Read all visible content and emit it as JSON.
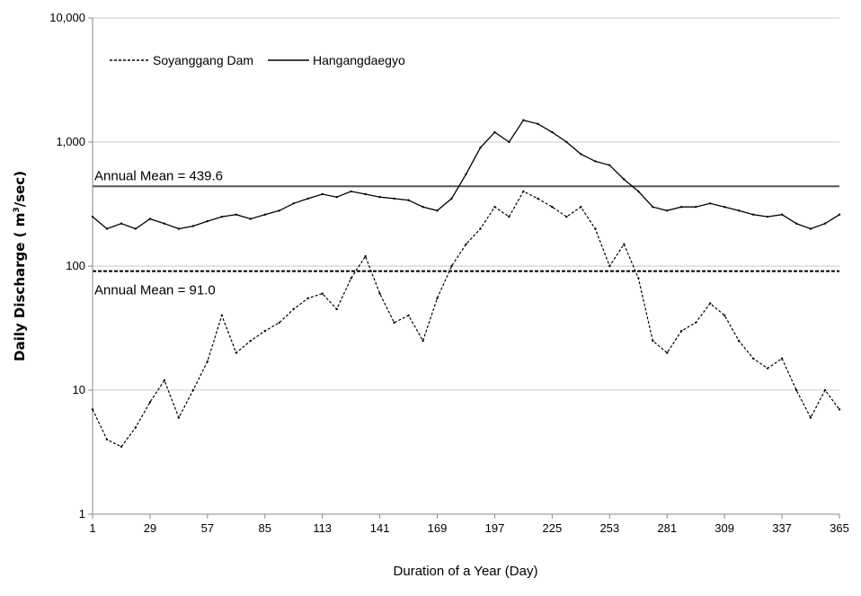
{
  "chart_data": {
    "type": "line",
    "title": "",
    "xlabel": "Duration of a Year (Day)",
    "ylabel": "Daily Discharge ( m³/sec)",
    "ylabel_parts": {
      "pre": "Daily Discharge ( m",
      "sup": "3",
      "post": "/sec)"
    },
    "yscale": "log",
    "ylim": [
      1,
      10000
    ],
    "xlim": [
      1,
      365
    ],
    "y_ticks": [
      1,
      10,
      100,
      1000,
      10000
    ],
    "y_tick_labels": [
      "1",
      "10",
      "100",
      "1,000",
      "10,000"
    ],
    "x_ticks": [
      1,
      29,
      57,
      85,
      113,
      141,
      169,
      197,
      225,
      253,
      281,
      309,
      337,
      365
    ],
    "x_tick_labels": [
      "1",
      "29",
      "57",
      "85",
      "113",
      "141",
      "169",
      "197",
      "225",
      "253",
      "281",
      "309",
      "337",
      "365"
    ],
    "grid": "horizontal",
    "legend_position": "top-left",
    "series": [
      {
        "name": "Soyanggang Dam",
        "style": "dashed",
        "x": [
          1,
          8,
          15,
          22,
          29,
          36,
          43,
          50,
          57,
          64,
          71,
          78,
          85,
          92,
          99,
          106,
          113,
          120,
          127,
          134,
          141,
          148,
          155,
          162,
          169,
          176,
          183,
          190,
          197,
          204,
          211,
          218,
          225,
          232,
          239,
          246,
          253,
          260,
          267,
          274,
          281,
          288,
          295,
          302,
          309,
          316,
          323,
          330,
          337,
          344,
          351,
          358,
          365
        ],
        "values": [
          7,
          4,
          3.5,
          5,
          8,
          12,
          6,
          10,
          17,
          40,
          20,
          25,
          30,
          35,
          45,
          55,
          60,
          45,
          80,
          120,
          60,
          35,
          40,
          25,
          55,
          100,
          150,
          200,
          300,
          250,
          400,
          350,
          300,
          250,
          300,
          200,
          100,
          150,
          80,
          25,
          20,
          30,
          35,
          50,
          40,
          25,
          18,
          15,
          18,
          10,
          6,
          10,
          7
        ]
      },
      {
        "name": "Hangangdaegyo",
        "style": "solid",
        "x": [
          1,
          8,
          15,
          22,
          29,
          36,
          43,
          50,
          57,
          64,
          71,
          78,
          85,
          92,
          99,
          106,
          113,
          120,
          127,
          134,
          141,
          148,
          155,
          162,
          169,
          176,
          183,
          190,
          197,
          204,
          211,
          218,
          225,
          232,
          239,
          246,
          253,
          260,
          267,
          274,
          281,
          288,
          295,
          302,
          309,
          316,
          323,
          330,
          337,
          344,
          351,
          358,
          365
        ],
        "values": [
          250,
          200,
          220,
          200,
          240,
          220,
          200,
          210,
          230,
          250,
          260,
          240,
          260,
          280,
          320,
          350,
          380,
          360,
          400,
          380,
          360,
          350,
          340,
          300,
          280,
          350,
          550,
          900,
          1200,
          1000,
          1500,
          1400,
          1200,
          1000,
          800,
          700,
          650,
          500,
          400,
          300,
          280,
          300,
          300,
          320,
          300,
          280,
          260,
          250,
          260,
          220,
          200,
          220,
          260
        ]
      }
    ],
    "reference_lines": [
      {
        "value": 439.6,
        "label": "Annual Mean = 439.6",
        "style": "solid",
        "color": "#555555"
      },
      {
        "value": 91.0,
        "label": "Annual Mean = 91.0",
        "style": "dashed",
        "color": "#000000"
      }
    ]
  }
}
